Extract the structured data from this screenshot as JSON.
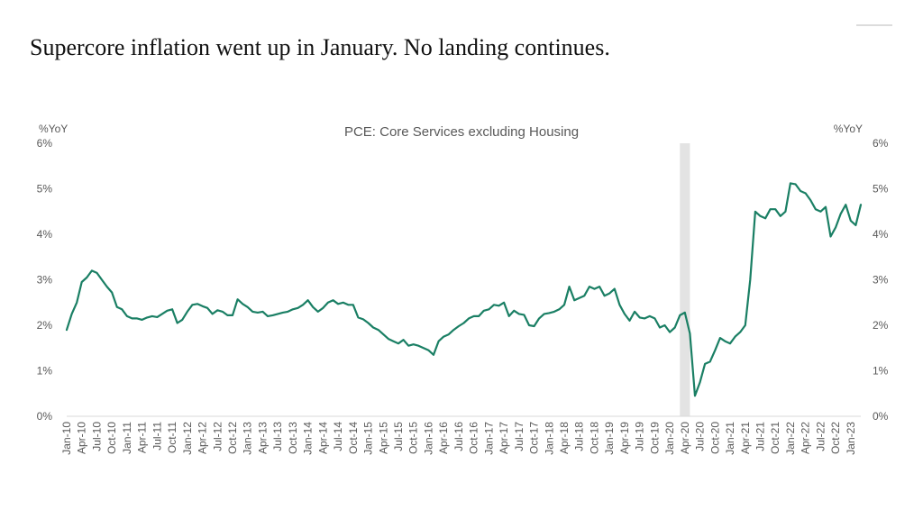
{
  "slide": {
    "title": "Supercore inflation went up in January. No landing continues."
  },
  "chart_data": {
    "type": "line",
    "title": "PCE: Core Services excluding Housing",
    "ylabel_left": "%YoY",
    "ylabel_right": "%YoY",
    "ylim": [
      0,
      6
    ],
    "y_ticks": [
      "0%",
      "1%",
      "2%",
      "3%",
      "4%",
      "5%",
      "6%"
    ],
    "x_start": "Jan-10",
    "x_end": "Jan-23",
    "x_tick_labels": [
      "Jan-10",
      "Apr-10",
      "Jul-10",
      "Oct-10",
      "Jan-11",
      "Apr-11",
      "Jul-11",
      "Oct-11",
      "Jan-12",
      "Apr-12",
      "Jul-12",
      "Oct-12",
      "Jan-13",
      "Apr-13",
      "Jul-13",
      "Oct-13",
      "Jan-14",
      "Apr-14",
      "Jul-14",
      "Oct-14",
      "Jan-15",
      "Apr-15",
      "Jul-15",
      "Oct-15",
      "Jan-16",
      "Apr-16",
      "Jul-16",
      "Oct-16",
      "Jan-17",
      "Apr-17",
      "Jul-17",
      "Oct-17",
      "Jan-18",
      "Apr-18",
      "Jul-18",
      "Oct-18",
      "Jan-19",
      "Apr-19",
      "Jul-19",
      "Oct-19",
      "Jan-20",
      "Apr-20",
      "Jul-20",
      "Oct-20",
      "Jan-21",
      "Apr-21",
      "Jul-21",
      "Oct-21",
      "Jan-22",
      "Apr-22",
      "Jul-22",
      "Oct-22",
      "Jan-23"
    ],
    "recession_shading": {
      "start_index": 122,
      "end_index": 124
    },
    "line_color": "#1a7f64",
    "shade_color": "#e3e3e3",
    "series": [
      {
        "name": "PCE: Core Services excluding Housing",
        "values": [
          1.9,
          2.25,
          2.5,
          2.95,
          3.05,
          3.2,
          3.15,
          3.0,
          2.85,
          2.72,
          2.4,
          2.35,
          2.2,
          2.15,
          2.15,
          2.12,
          2.17,
          2.2,
          2.18,
          2.25,
          2.32,
          2.35,
          2.05,
          2.12,
          2.3,
          2.45,
          2.47,
          2.42,
          2.38,
          2.25,
          2.33,
          2.3,
          2.22,
          2.22,
          2.57,
          2.47,
          2.4,
          2.3,
          2.28,
          2.3,
          2.2,
          2.22,
          2.25,
          2.28,
          2.3,
          2.35,
          2.38,
          2.45,
          2.55,
          2.4,
          2.3,
          2.38,
          2.5,
          2.55,
          2.47,
          2.5,
          2.45,
          2.45,
          2.17,
          2.13,
          2.05,
          1.95,
          1.9,
          1.8,
          1.7,
          1.65,
          1.6,
          1.68,
          1.55,
          1.58,
          1.55,
          1.5,
          1.45,
          1.35,
          1.65,
          1.75,
          1.8,
          1.9,
          1.98,
          2.05,
          2.15,
          2.2,
          2.2,
          2.32,
          2.35,
          2.45,
          2.43,
          2.5,
          2.2,
          2.32,
          2.25,
          2.23,
          2.0,
          1.98,
          2.15,
          2.25,
          2.27,
          2.3,
          2.35,
          2.45,
          2.85,
          2.55,
          2.6,
          2.65,
          2.85,
          2.8,
          2.85,
          2.65,
          2.7,
          2.8,
          2.45,
          2.25,
          2.1,
          2.3,
          2.17,
          2.15,
          2.2,
          2.15,
          1.95,
          2.0,
          1.85,
          1.95,
          2.22,
          2.28,
          1.82,
          0.45,
          0.75,
          1.15,
          1.2,
          1.45,
          1.72,
          1.65,
          1.6,
          1.75,
          1.85,
          2.0,
          3.0,
          4.5,
          4.4,
          4.35,
          4.55,
          4.55,
          4.4,
          4.5,
          5.12,
          5.1,
          4.95,
          4.9,
          4.75,
          4.55,
          4.5,
          4.6,
          3.95,
          4.15,
          4.45,
          4.65,
          4.3,
          4.2,
          4.65
        ]
      }
    ]
  }
}
